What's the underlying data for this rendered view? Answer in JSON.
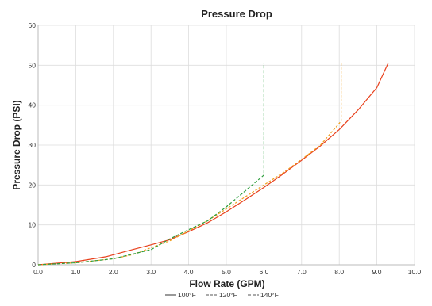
{
  "chart_data": {
    "type": "line",
    "title": "Pressure Drop",
    "xlabel": "Flow Rate (GPM)",
    "ylabel": "Pressure Drop (PSI)",
    "xlim": [
      0,
      10
    ],
    "ylim": [
      0,
      60
    ],
    "xticks": [
      "0.0",
      "1.0",
      "2.0",
      "3.0",
      "4.0",
      "5.0",
      "6.0",
      "7.0",
      "8.0",
      "9.0",
      "10.0"
    ],
    "yticks": [
      "0",
      "10",
      "20",
      "30",
      "40",
      "50",
      "60"
    ],
    "grid": true,
    "legend_position": "bottom",
    "series": [
      {
        "name": "100°F",
        "color": "#e8401c",
        "dash": "solid",
        "points": [
          [
            0,
            0
          ],
          [
            1,
            0.8
          ],
          [
            1.8,
            2
          ],
          [
            2.5,
            3.8
          ],
          [
            3,
            5
          ],
          [
            3.5,
            6.3
          ],
          [
            4,
            8.3
          ],
          [
            4.5,
            10.5
          ],
          [
            5,
            13.3
          ],
          [
            5.5,
            16.3
          ],
          [
            6,
            19.4
          ],
          [
            6.5,
            22.7
          ],
          [
            7,
            26.2
          ],
          [
            7.5,
            29.8
          ],
          [
            8,
            33.9
          ],
          [
            8.5,
            38.8
          ],
          [
            9,
            44.4
          ],
          [
            9.3,
            50.5
          ]
        ]
      },
      {
        "name": "120°F",
        "color": "#f0a020",
        "dash": "dash",
        "points": [
          [
            0,
            0
          ],
          [
            1,
            0.5
          ],
          [
            2,
            1.5
          ],
          [
            2.5,
            2.5
          ],
          [
            3,
            4.3
          ],
          [
            3.5,
            6
          ],
          [
            4,
            8.5
          ],
          [
            4.5,
            11
          ],
          [
            5,
            14
          ],
          [
            5.5,
            17
          ],
          [
            6,
            20
          ],
          [
            6.5,
            23
          ],
          [
            7,
            26.4
          ],
          [
            7.5,
            30
          ],
          [
            8.05,
            36
          ],
          [
            8.05,
            50.5
          ]
        ]
      },
      {
        "name": "140°F",
        "color": "#2e9e3e",
        "dash": "longdash",
        "points": [
          [
            0,
            0
          ],
          [
            1,
            0.5
          ],
          [
            2,
            1.5
          ],
          [
            3,
            3.8
          ],
          [
            3.5,
            6.5
          ],
          [
            4,
            8.8
          ],
          [
            4.5,
            11
          ],
          [
            5,
            14.5
          ],
          [
            5.5,
            18.5
          ],
          [
            6,
            22.5
          ],
          [
            6,
            50.5
          ]
        ]
      }
    ]
  }
}
